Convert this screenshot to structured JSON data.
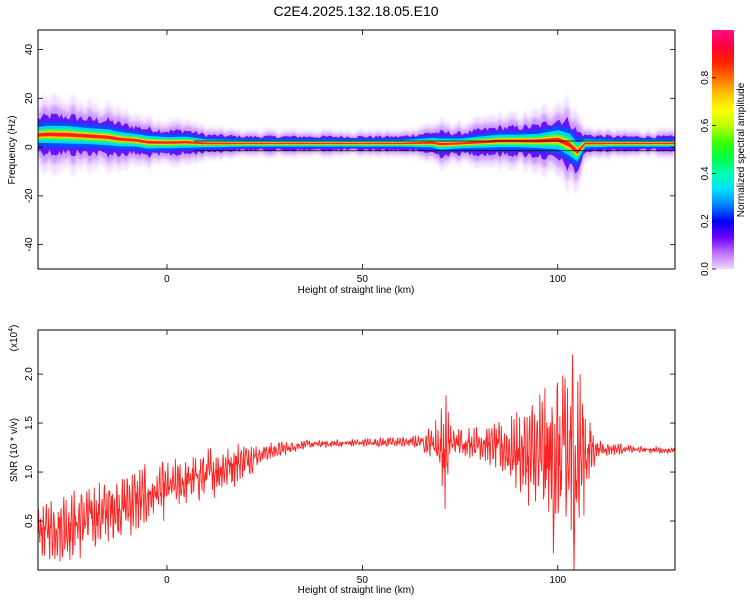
{
  "page_title": "C2E4.2025.132.18.05.E10",
  "chart_data": [
    {
      "type": "heatmap",
      "name": "spectrogram",
      "xlabel": "Height of straight line (km)",
      "ylabel": "Frequency (Hz)",
      "xlim": [
        -33,
        130
      ],
      "ylim": [
        -50,
        48
      ],
      "x_ticks": [
        0,
        50,
        100
      ],
      "x_tick_labels": [
        "0",
        "50",
        "100"
      ],
      "y_ticks": [
        -40,
        -20,
        0,
        20,
        40
      ],
      "y_tick_labels": [
        "-40",
        "-20",
        "0",
        "20",
        "40"
      ],
      "colorbar": {
        "label": "Normalized spectral amplitude",
        "range": [
          0,
          1
        ],
        "ticks": [
          0.0,
          0.2,
          0.4,
          0.6,
          0.8
        ],
        "tick_labels": [
          "0.0",
          "0.2",
          "0.4",
          "0.6",
          "0.8"
        ],
        "colors": [
          "#f0d8ff",
          "#c070ff",
          "#6a00ff",
          "#0000ff",
          "#0080ff",
          "#00e0ff",
          "#00ffb0",
          "#00ff40",
          "#40ff00",
          "#c0ff00",
          "#ffff00",
          "#ffc000",
          "#ff7000",
          "#ff2000",
          "#ff0040",
          "#ff1080"
        ]
      },
      "reference_band_hz": [
        -1.5,
        2.5
      ],
      "ridge_points": [
        {
          "x": -33,
          "f": 5.0,
          "w": 5.0
        },
        {
          "x": -30,
          "f": 5.2,
          "w": 5.5
        },
        {
          "x": -25,
          "f": 5.0,
          "w": 5.5
        },
        {
          "x": -20,
          "f": 4.5,
          "w": 5.0
        },
        {
          "x": -15,
          "f": 4.0,
          "w": 5.0
        },
        {
          "x": -12,
          "f": 3.2,
          "w": 4.5
        },
        {
          "x": -8,
          "f": 2.8,
          "w": 4.0
        },
        {
          "x": -5,
          "f": 2.0,
          "w": 4.0
        },
        {
          "x": 0,
          "f": 1.8,
          "w": 3.5
        },
        {
          "x": 5,
          "f": 2.0,
          "w": 3.5
        },
        {
          "x": 10,
          "f": 1.5,
          "w": 2.5
        },
        {
          "x": 20,
          "f": 1.5,
          "w": 2.0
        },
        {
          "x": 40,
          "f": 1.5,
          "w": 2.0
        },
        {
          "x": 60,
          "f": 1.5,
          "w": 2.0
        },
        {
          "x": 68,
          "f": 1.8,
          "w": 3.0
        },
        {
          "x": 70,
          "f": 1.2,
          "w": 3.5
        },
        {
          "x": 75,
          "f": 1.5,
          "w": 3.0
        },
        {
          "x": 80,
          "f": 2.0,
          "w": 3.5
        },
        {
          "x": 85,
          "f": 2.5,
          "w": 4.0
        },
        {
          "x": 90,
          "f": 2.5,
          "w": 4.0
        },
        {
          "x": 95,
          "f": 2.5,
          "w": 4.5
        },
        {
          "x": 100,
          "f": 3.0,
          "w": 6.0
        },
        {
          "x": 103,
          "f": 1.0,
          "w": 7.0
        },
        {
          "x": 105,
          "f": -2.0,
          "w": 6.0
        },
        {
          "x": 107,
          "f": 1.5,
          "w": 2.5
        },
        {
          "x": 115,
          "f": 1.5,
          "w": 2.0
        },
        {
          "x": 130,
          "f": 1.5,
          "w": 2.0
        }
      ]
    },
    {
      "type": "line",
      "name": "snr",
      "xlabel": "Height of straight line (km)",
      "ylabel": "SNR (10 * v/v)",
      "y_multiplier": "(x10",
      "y_multiplier_exp": "4",
      "y_multiplier_close": ")",
      "color": "#ff2020",
      "xlim": [
        -33,
        130
      ],
      "ylim": [
        0,
        24500
      ],
      "x_ticks": [
        0,
        50,
        100
      ],
      "x_tick_labels": [
        "0",
        "50",
        "100"
      ],
      "y_ticks": [
        5000,
        10000,
        15000,
        20000
      ],
      "y_tick_labels": [
        "0.5",
        "1.0",
        "1.5",
        "2.0"
      ],
      "envelope": [
        {
          "x": -33,
          "mean": 4000,
          "amp": 2500
        },
        {
          "x": -25,
          "mean": 4500,
          "amp": 3500
        },
        {
          "x": -15,
          "mean": 6000,
          "amp": 3000
        },
        {
          "x": -5,
          "mean": 7500,
          "amp": 3000
        },
        {
          "x": 5,
          "mean": 9000,
          "amp": 2500
        },
        {
          "x": 15,
          "mean": 10500,
          "amp": 2500
        },
        {
          "x": 25,
          "mean": 12000,
          "amp": 1000
        },
        {
          "x": 35,
          "mean": 12800,
          "amp": 400
        },
        {
          "x": 50,
          "mean": 13000,
          "amp": 400
        },
        {
          "x": 65,
          "mean": 13100,
          "amp": 600
        },
        {
          "x": 69,
          "mean": 13000,
          "amp": 2500
        },
        {
          "x": 71,
          "mean": 12000,
          "amp": 6000
        },
        {
          "x": 73,
          "mean": 13000,
          "amp": 1500
        },
        {
          "x": 80,
          "mean": 13000,
          "amp": 1500
        },
        {
          "x": 85,
          "mean": 12500,
          "amp": 2500
        },
        {
          "x": 90,
          "mean": 12000,
          "amp": 4000
        },
        {
          "x": 95,
          "mean": 11500,
          "amp": 6000
        },
        {
          "x": 100,
          "mean": 11000,
          "amp": 10000
        },
        {
          "x": 104,
          "mean": 11500,
          "amp": 12000
        },
        {
          "x": 107,
          "mean": 12000,
          "amp": 5000
        },
        {
          "x": 110,
          "mean": 12400,
          "amp": 800
        },
        {
          "x": 120,
          "mean": 12300,
          "amp": 300
        },
        {
          "x": 130,
          "mean": 12200,
          "amp": 300
        }
      ]
    }
  ]
}
